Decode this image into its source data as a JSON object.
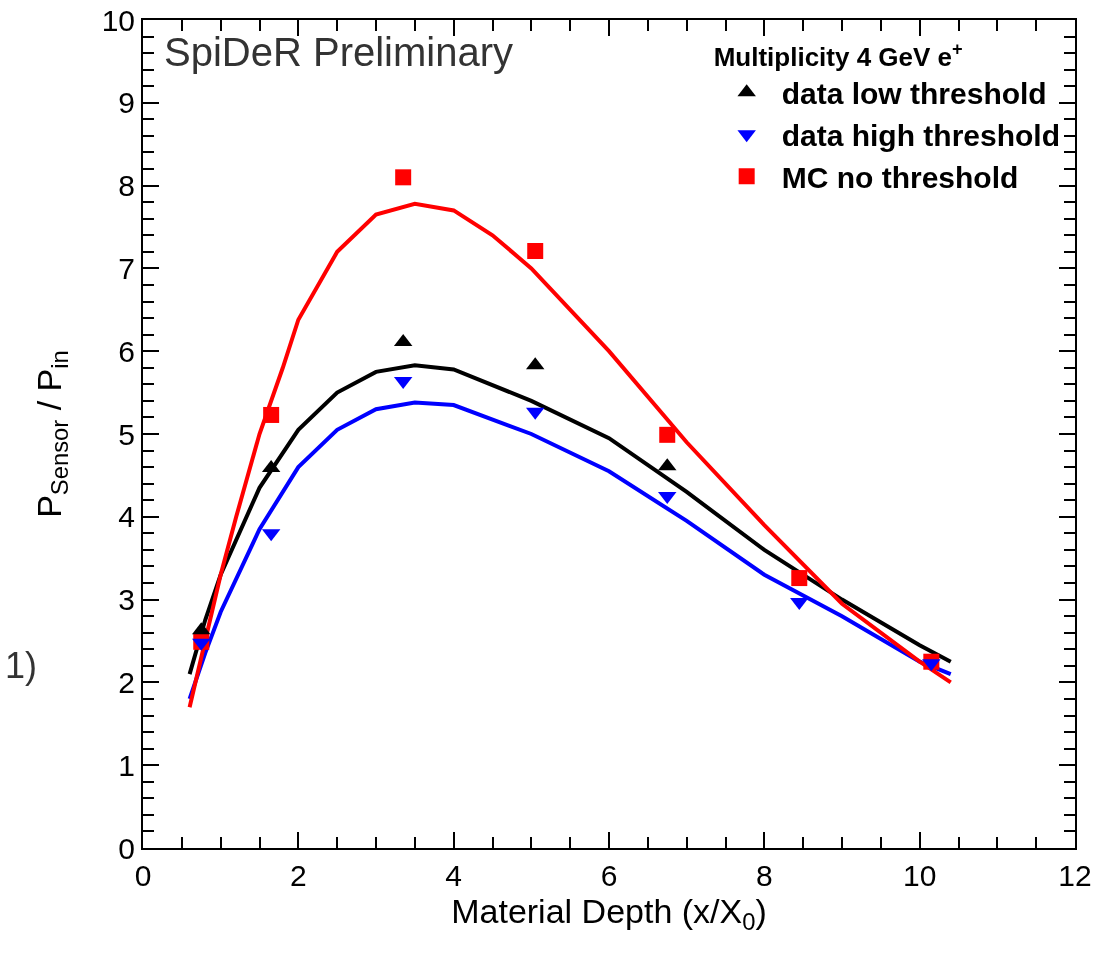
{
  "chart_data": {
    "type": "scatter",
    "xlabel": "Material Depth (x/X$_{0}$)",
    "ylabel": "P$_{Sensor}$ / P$_{in}$",
    "legend_title": "Multiplicity 4 GeV e$^{+}$",
    "legend": "top right",
    "grid": false,
    "xlim": [
      0,
      12
    ],
    "xticks": [
      0,
      2,
      4,
      6,
      8,
      10,
      12
    ],
    "ylim": [
      0,
      10
    ],
    "yticks": [
      0,
      1,
      2,
      3,
      4,
      5,
      6,
      7,
      8,
      9,
      10
    ],
    "annotations": [
      "SpiDeR Preliminary",
      "1)"
    ],
    "series": [
      {
        "name": "data low threshold",
        "color": "#000000",
        "marker": "triangle",
        "x": [
          0.75,
          1.65,
          3.35,
          5.05,
          6.75
        ],
        "values": [
          2.63,
          4.59,
          6.11,
          5.83,
          4.61
        ]
      },
      {
        "name": "data high threshold",
        "color": "#0000ff",
        "marker": "triangle-down",
        "x": [
          0.75,
          1.65,
          3.35,
          5.05,
          6.75,
          8.45,
          10.15
        ],
        "values": [
          2.48,
          3.8,
          5.64,
          5.27,
          4.25,
          2.97,
          2.23
        ]
      },
      {
        "name": "MC no threshold",
        "color": "#ff0000",
        "marker": "square",
        "x": [
          0.75,
          1.65,
          3.35,
          5.05,
          6.75,
          8.45,
          10.15
        ],
        "values": [
          2.49,
          5.23,
          8.1,
          7.21,
          4.99,
          3.26,
          2.25
        ]
      },
      {
        "type": "line",
        "color": "#000000",
        "x": [
          0.6,
          0.8,
          1.0,
          1.5,
          2.0,
          2.5,
          3.0,
          3.5,
          4.0,
          5.0,
          6.0,
          7.0,
          8.0,
          9.0,
          10.0,
          10.4
        ],
        "values": [
          2.1,
          2.75,
          3.3,
          4.35,
          5.05,
          5.5,
          5.75,
          5.83,
          5.78,
          5.4,
          4.95,
          4.3,
          3.6,
          3.0,
          2.45,
          2.25
        ]
      },
      {
        "type": "line",
        "color": "#0000ff",
        "x": [
          0.6,
          0.8,
          1.0,
          1.5,
          2.0,
          2.5,
          3.0,
          3.5,
          4.0,
          5.0,
          6.0,
          7.0,
          8.0,
          9.0,
          10.0,
          10.4
        ],
        "values": [
          1.8,
          2.35,
          2.85,
          3.85,
          4.6,
          5.05,
          5.3,
          5.38,
          5.35,
          5.0,
          4.55,
          3.95,
          3.3,
          2.8,
          2.25,
          2.1
        ]
      },
      {
        "type": "line",
        "color": "#ff0000",
        "x": [
          0.6,
          0.8,
          1.0,
          1.2,
          1.5,
          1.8,
          2.0,
          2.5,
          3.0,
          3.5,
          4.0,
          4.5,
          5.0,
          6.0,
          7.0,
          8.0,
          9.0,
          10.0,
          10.4
        ],
        "values": [
          1.7,
          2.5,
          3.3,
          4.0,
          5.0,
          5.8,
          6.38,
          7.2,
          7.65,
          7.78,
          7.7,
          7.4,
          7.0,
          6.0,
          4.9,
          3.9,
          2.95,
          2.25,
          2.0
        ]
      }
    ]
  }
}
